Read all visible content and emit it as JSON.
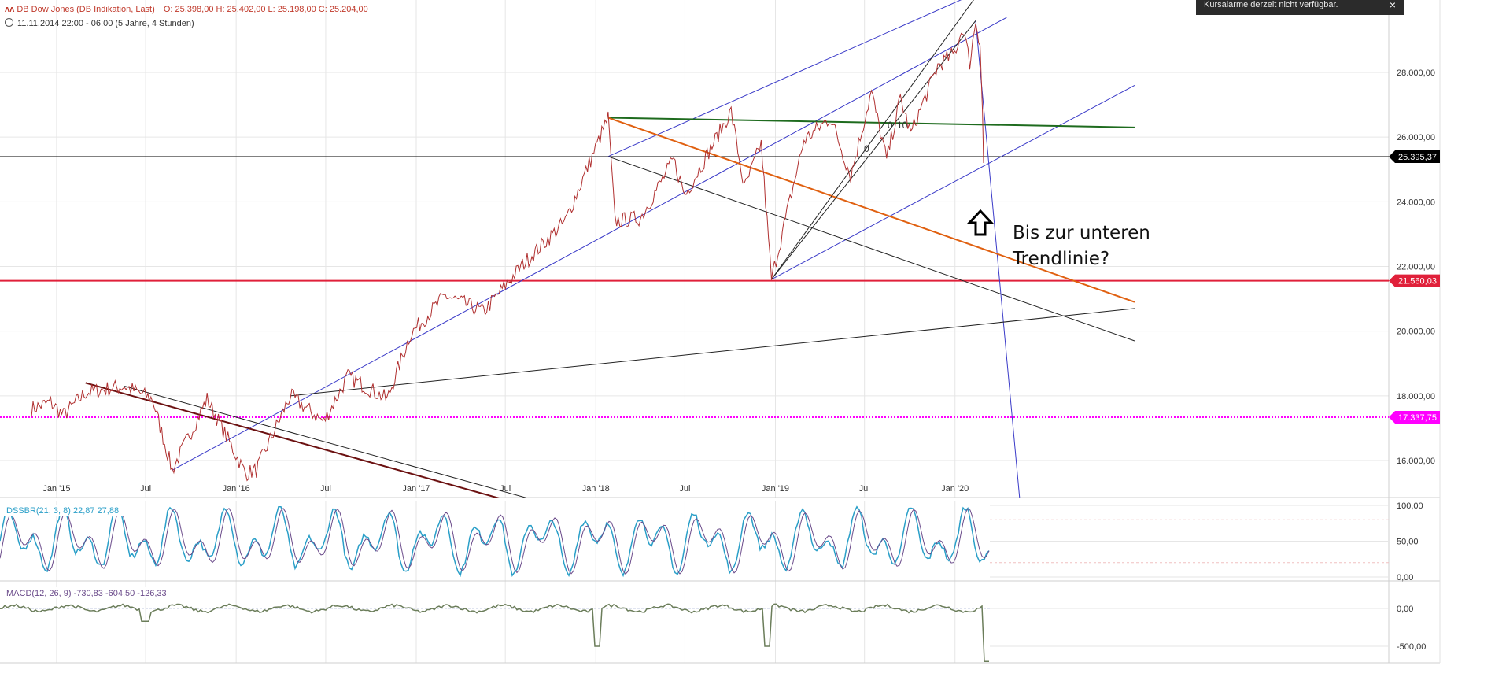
{
  "header": {
    "title": "DB Dow Jones (DB Indikation, Last)",
    "ohlc": "O: 25.398,00  H: 25.402,00  L: 25.198,00  C: 25.204,00",
    "range": "11.11.2014 22:00 - 06:00  (5 Jahre, 4 Stunden)"
  },
  "alarm": {
    "text": "Kursalarme derzeit nicht verfügbar.",
    "close_label": "×"
  },
  "annotation": {
    "line1": "Bis zur unteren",
    "line2": "Trendlinie?"
  },
  "colors": {
    "grid": "#e6e6e6",
    "price": "#b03030",
    "trend_blue": "#3a3ac8",
    "green_line": "#1e6b1e",
    "orange_line": "#e06010",
    "red_line": "#e0203a",
    "magenta": "#ff00ff",
    "dssbr": "#2a9fc8",
    "macd": "#6b7d5a"
  },
  "chart_data": [
    {
      "type": "line",
      "title": "DB Dow Jones (DB Indikation, Last)",
      "x_ticks": [
        "Jan '15",
        "Jul",
        "Jan '16",
        "Jul",
        "Jan '17",
        "Jul",
        "Jan '18",
        "Jul",
        "Jan '19",
        "Jul",
        "Jan '20"
      ],
      "y_ticks": [
        "16.000,00",
        "18.000,00",
        "20.000,00",
        "22.000,00",
        "24.000,00",
        "26.000,00",
        "28.000,00"
      ],
      "ylim": [
        14000,
        30000
      ],
      "xlim": [
        "2014-11-11",
        "2020-02-28"
      ],
      "series": [
        {
          "values": [
            [
              "2014-11-11",
              17600
            ],
            [
              "2014-12-20",
              17800
            ],
            [
              "2015-01-15",
              17400
            ],
            [
              "2015-03-01",
              18100
            ],
            [
              "2015-05-19",
              18300
            ],
            [
              "2015-07-15",
              17900
            ],
            [
              "2015-08-24",
              15700
            ],
            [
              "2015-11-03",
              17900
            ],
            [
              "2016-01-20",
              15600
            ],
            [
              "2016-02-11",
              15700
            ],
            [
              "2016-04-20",
              18000
            ],
            [
              "2016-06-27",
              17200
            ],
            [
              "2016-08-15",
              18600
            ],
            [
              "2016-11-03",
              17900
            ],
            [
              "2016-12-20",
              19900
            ],
            [
              "2017-03-01",
              21100
            ],
            [
              "2017-05-18",
              20600
            ],
            [
              "2017-08-08",
              22100
            ],
            [
              "2017-10-31",
              23400
            ],
            [
              "2018-01-26",
              26600
            ],
            [
              "2018-02-09",
              23400
            ],
            [
              "2018-04-02",
              23500
            ],
            [
              "2018-06-08",
              25300
            ],
            [
              "2018-07-01",
              24200
            ],
            [
              "2018-10-03",
              26800
            ],
            [
              "2018-10-30",
              24400
            ],
            [
              "2018-12-03",
              25800
            ],
            [
              "2018-12-24",
              21600
            ],
            [
              "2019-02-28",
              25900
            ],
            [
              "2019-04-23",
              26600
            ],
            [
              "2019-06-03",
              24800
            ],
            [
              "2019-07-15",
              27400
            ],
            [
              "2019-08-15",
              25300
            ],
            [
              "2019-09-12",
              27200
            ],
            [
              "2019-10-03",
              26100
            ],
            [
              "2019-11-27",
              28200
            ],
            [
              "2019-12-31",
              28600
            ],
            [
              "2020-01-17",
              29400
            ],
            [
              "2020-01-31",
              28300
            ],
            [
              "2020-02-12",
              29600
            ],
            [
              "2020-02-21",
              28900
            ],
            [
              "2020-02-26",
              26700
            ],
            [
              "2020-02-28",
              25200
            ]
          ]
        }
      ],
      "last_value_badge": "25.395,37",
      "lines": {
        "red_horizontal": "21.560,03",
        "magenta_dotted": "17.337,75",
        "last_price": "25.395,37"
      },
      "annotations": [
        "0",
        "0",
        "10"
      ]
    },
    {
      "type": "line",
      "title": "DSSBR(21, 3, 8) 22,87  27,88",
      "y_ticks": [
        "0,00",
        "50,00",
        "100,00"
      ],
      "ylim": [
        0,
        100
      ]
    },
    {
      "type": "line",
      "title": "MACD(12, 26, 9) -730,83  -604,50  -126,33",
      "y_ticks": [
        "-500,00",
        "0,00"
      ],
      "ylim": [
        -700,
        120
      ]
    }
  ]
}
